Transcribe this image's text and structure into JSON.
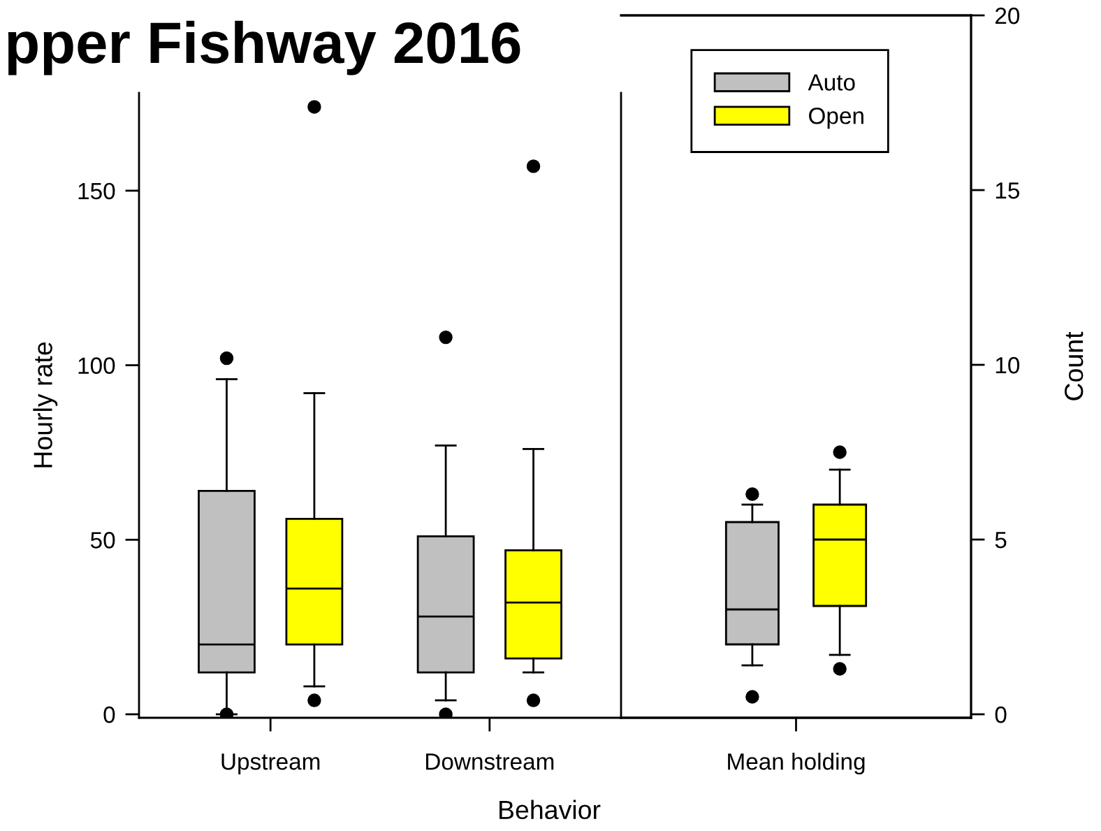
{
  "chart_data": [
    {
      "type": "box",
      "title": "pper Fishway 2016",
      "xlabel": "Behavior",
      "ylabel": "Hourly rate",
      "categories": [
        "Upstream",
        "Downstream"
      ],
      "ylim": [
        -1,
        178
      ],
      "yticks": [
        0,
        50,
        100,
        150
      ],
      "grid": false,
      "legend": "top right",
      "series": [
        {
          "name": "Auto",
          "color": "#c0c0c0",
          "boxes": [
            {
              "low": 0,
              "q1": 12,
              "median": 20,
              "q3": 64,
              "high": 96,
              "outliers": [
                102,
                0
              ]
            },
            {
              "low": 4,
              "q1": 12,
              "median": 28,
              "q3": 51,
              "high": 77,
              "outliers": [
                108,
                0
              ]
            }
          ]
        },
        {
          "name": "Open",
          "color": "#ffff00",
          "boxes": [
            {
              "low": 8,
              "q1": 20,
              "median": 36,
              "q3": 56,
              "high": 92,
              "outliers": [
                174,
                4
              ]
            },
            {
              "low": 12,
              "q1": 16,
              "median": 32,
              "q3": 47,
              "high": 76,
              "outliers": [
                157,
                4
              ]
            }
          ]
        }
      ]
    },
    {
      "type": "box",
      "y2label": "Count",
      "categories": [
        "Mean holding"
      ],
      "y2lim": [
        -0.1,
        20
      ],
      "y2ticks": [
        0,
        5,
        10,
        15,
        20
      ],
      "grid": false,
      "series": [
        {
          "name": "Auto",
          "color": "#c0c0c0",
          "axis": "y2",
          "boxes": [
            {
              "low": 1.4,
              "q1": 2.0,
              "median": 3.0,
              "q3": 5.5,
              "high": 6.0,
              "outliers": [
                6.3,
                0.5
              ]
            }
          ]
        },
        {
          "name": "Open",
          "color": "#ffff00",
          "axis": "y2",
          "boxes": [
            {
              "low": 1.7,
              "q1": 3.1,
              "median": 5.0,
              "q3": 6.0,
              "high": 7.0,
              "outliers": [
                7.5,
                1.3
              ]
            }
          ]
        }
      ]
    }
  ]
}
